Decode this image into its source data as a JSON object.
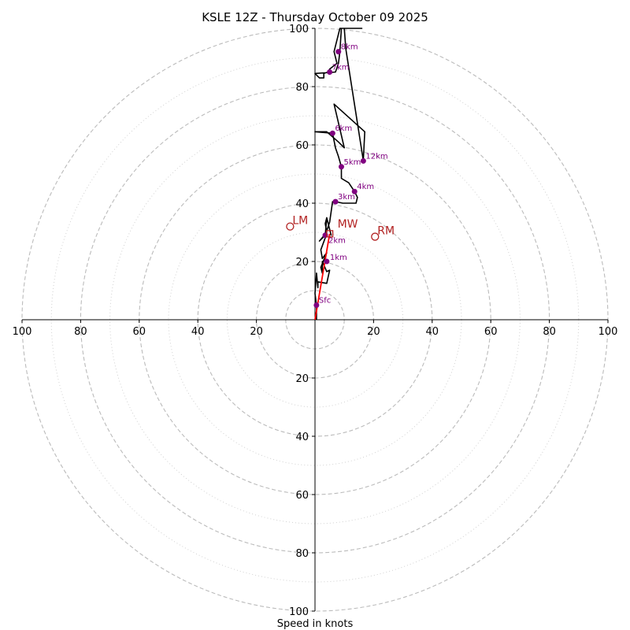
{
  "chart_data": {
    "type": "line",
    "subtype": "hodograph",
    "title": "KSLE 12Z - Thursday October 09 2025",
    "xlabel": "Speed in knots",
    "ylabel": "",
    "xlim": [
      -100,
      100
    ],
    "ylim": [
      -100,
      100
    ],
    "ticks": [
      "100",
      "80",
      "60",
      "40",
      "20",
      "20",
      "40",
      "60",
      "80",
      "100"
    ],
    "tick_values": [
      -100,
      -80,
      -60,
      -40,
      -20,
      20,
      40,
      60,
      80,
      100
    ],
    "rings": {
      "dashed": [
        10,
        20,
        40,
        60,
        80,
        100
      ],
      "dotted": [
        30,
        50,
        70,
        90
      ]
    },
    "grid": true,
    "colors": {
      "trace": "#000000",
      "markers": "#800080",
      "motion": "#b22222",
      "shear_vector": "#ff0000",
      "grid": "#bbbbbb"
    },
    "trace": {
      "u": [
        0.5,
        0.5,
        0,
        0.5,
        1,
        1,
        4,
        5,
        4,
        2.5,
        2.5,
        2,
        4,
        2.5,
        2,
        4,
        1.5,
        4,
        3.5,
        4,
        5.5,
        4,
        3.5,
        5,
        6,
        7,
        9.5,
        14,
        14.5,
        13.5,
        11.5,
        9,
        9,
        8,
        7,
        6,
        0,
        4,
        8,
        10,
        6.5,
        17,
        16.5,
        16.5,
        10.5,
        10,
        16,
        15.5,
        12,
        8.5,
        8.5,
        6.5,
        7.5,
        5,
        4.5,
        4.5,
        3,
        3,
        1.5,
        0,
        7,
        8,
        8.5,
        9
      ],
      "v": [
        0,
        5,
        9,
        16,
        11,
        13,
        12.5,
        17,
        16.5,
        20,
        16,
        18,
        23,
        21,
        24,
        29.5,
        27,
        30,
        33,
        35,
        29,
        35,
        29,
        33.5,
        40.5,
        40.5,
        40,
        40,
        42,
        44,
        47,
        48.5,
        52.5,
        56,
        59,
        64,
        64.5,
        64.5,
        61,
        59,
        74,
        64.5,
        55,
        54.5,
        93,
        100,
        100,
        100,
        100,
        100,
        100,
        92,
        88,
        86,
        84.5,
        85,
        84.5,
        83,
        83,
        84.5,
        85,
        88,
        92,
        100
      ]
    },
    "height_markers": [
      {
        "label": "Sfc",
        "u": 0.5,
        "v": 5
      },
      {
        "label": "1km",
        "u": 4,
        "v": 20
      },
      {
        "label": "2km",
        "u": 3.5,
        "v": 29
      },
      {
        "label": "3km",
        "u": 7,
        "v": 40.5
      },
      {
        "label": "4km",
        "u": 13.5,
        "v": 44
      },
      {
        "label": "5km",
        "u": 9,
        "v": 52.5
      },
      {
        "label": "6km",
        "u": 6,
        "v": 64
      },
      {
        "label": "7km",
        "u": 5,
        "v": 85
      },
      {
        "label": "8km",
        "u": 8,
        "v": 92
      },
      {
        "label": "12km",
        "u": 16.5,
        "v": 54.5
      }
    ],
    "storm_motions": [
      {
        "label": "LM",
        "u": -8.5,
        "v": 32,
        "marker": "circle"
      },
      {
        "label": "RM",
        "u": 20.5,
        "v": 28.5,
        "marker": "circle"
      },
      {
        "label": "MW",
        "u": 5,
        "v": 29.5,
        "marker": "square"
      }
    ],
    "shear_vector": {
      "from": [
        0,
        0
      ],
      "to": [
        5,
        29.5
      ]
    }
  }
}
